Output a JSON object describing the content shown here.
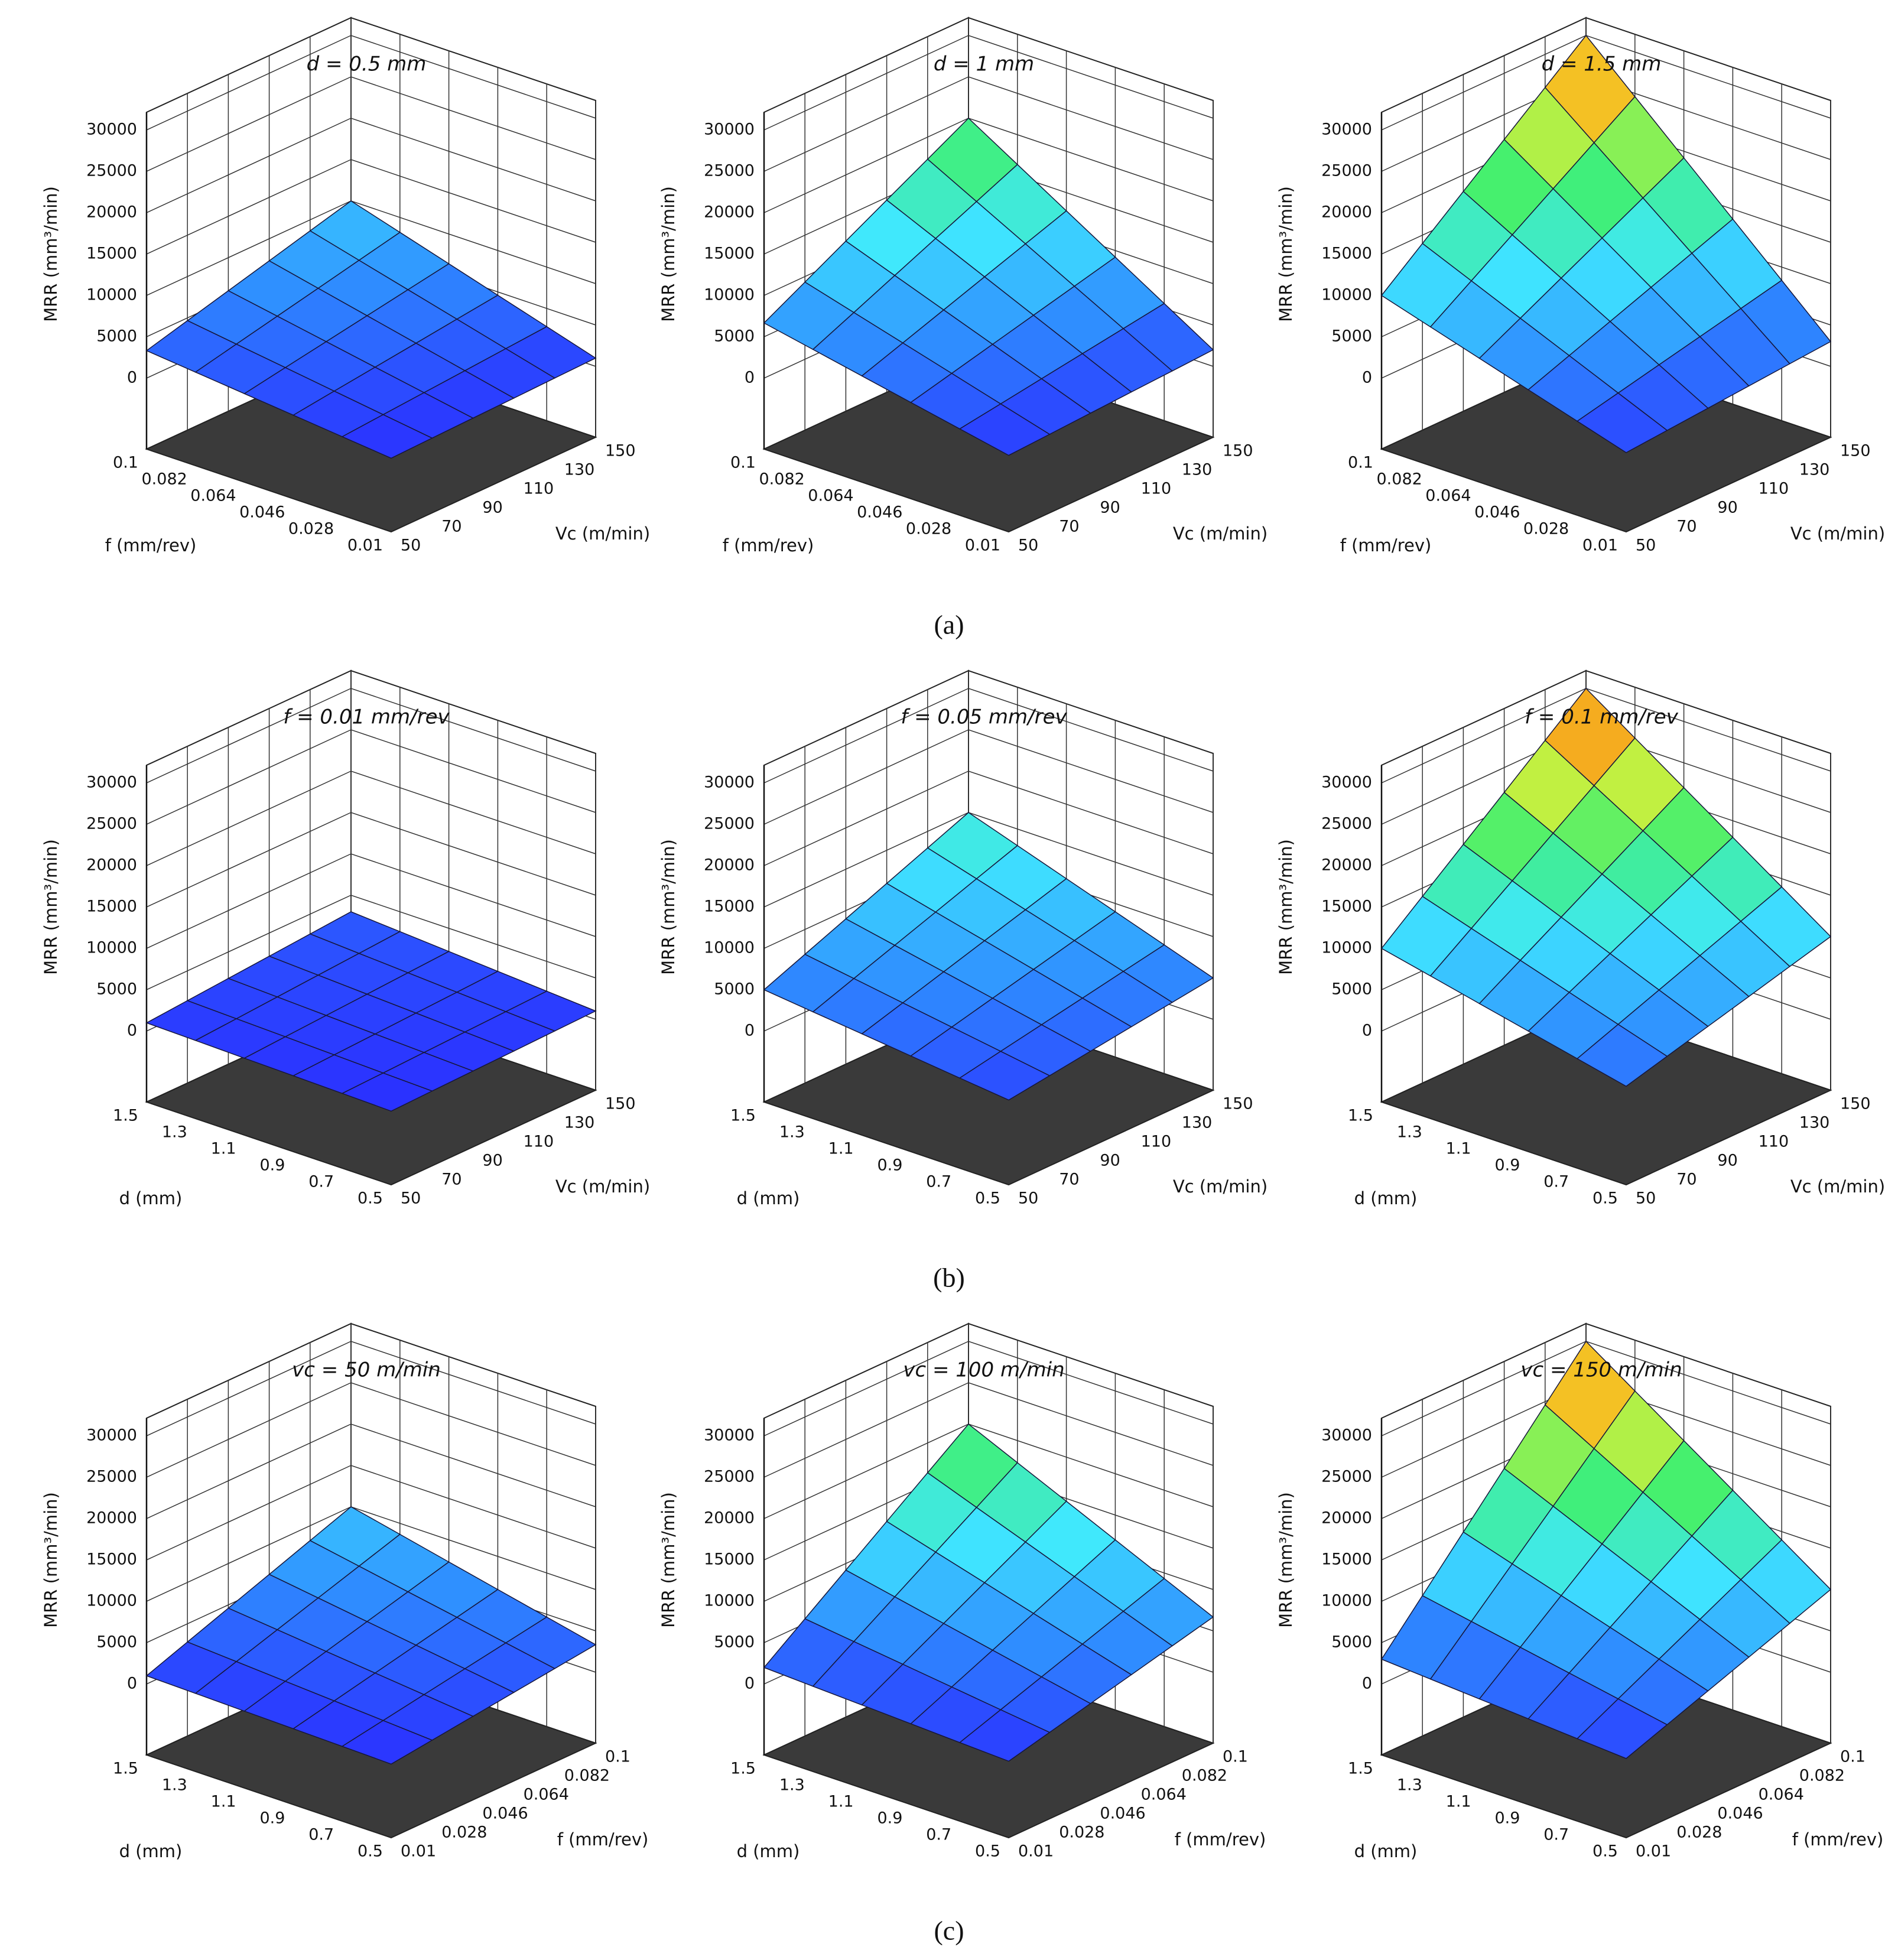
{
  "chart_data": [
    {
      "type": "surface",
      "title": "d = 0.5 mm",
      "xlabel": "f (mm/rev)",
      "ylabel": "Vc (m/min)",
      "zlabel": "MRR (mm³/min)",
      "xlim": [
        0.01,
        0.1
      ],
      "xticks": [
        0.01,
        0.028,
        0.046,
        0.064,
        0.082,
        0.1
      ],
      "ylim": [
        50,
        150
      ],
      "yticks": [
        50,
        70,
        90,
        110,
        130,
        150
      ],
      "zlim": [
        0,
        30000
      ],
      "zticks": [
        0,
        5000,
        10000,
        15000,
        20000,
        25000,
        30000
      ],
      "grid": true,
      "colorscale": [
        "#2a2aff",
        "#2f8fff",
        "#40e8ff",
        "#40f070",
        "#f0f030",
        "#ff3000"
      ],
      "z": [
        [
          330,
          470,
          600,
          730,
          870,
          1000
        ],
        [
          930,
          1310,
          1680,
          2050,
          2430,
          2800
        ],
        [
          1530,
          2150,
          2760,
          3370,
          3990,
          4600
        ],
        [
          2130,
          2990,
          3840,
          4690,
          5550,
          6400
        ],
        [
          2730,
          3830,
          4920,
          6010,
          7110,
          8200
        ],
        [
          3330,
          4670,
          6000,
          7330,
          8670,
          10000
        ]
      ]
    },
    {
      "type": "surface",
      "title": "d = 1 mm",
      "xlabel": "f (mm/rev)",
      "ylabel": "Vc (m/min)",
      "zlabel": "MRR (mm³/min)",
      "xlim": [
        0.01,
        0.1
      ],
      "xticks": [
        0.01,
        0.028,
        0.046,
        0.064,
        0.082,
        0.1
      ],
      "ylim": [
        50,
        150
      ],
      "yticks": [
        50,
        70,
        90,
        110,
        130,
        150
      ],
      "zlim": [
        0,
        30000
      ],
      "zticks": [
        0,
        5000,
        10000,
        15000,
        20000,
        25000,
        30000
      ],
      "grid": true,
      "colorscale": [
        "#2a2aff",
        "#2f8fff",
        "#40e8ff",
        "#40f070",
        "#f0f030",
        "#ff3000"
      ],
      "z": [
        [
          670,
          930,
          1200,
          1470,
          1730,
          2000
        ],
        [
          1870,
          2610,
          3360,
          4110,
          4850,
          5600
        ],
        [
          3070,
          4290,
          5520,
          6750,
          7970,
          9200
        ],
        [
          4270,
          5970,
          7680,
          9390,
          11090,
          12800
        ],
        [
          5470,
          7650,
          9840,
          12030,
          14210,
          16400
        ],
        [
          6670,
          9330,
          12000,
          14670,
          17330,
          20000
        ]
      ]
    },
    {
      "type": "surface",
      "title": "d = 1.5 mm",
      "xlabel": "f (mm/rev)",
      "ylabel": "Vc (m/min)",
      "zlabel": "MRR (mm³/min)",
      "xlim": [
        0.01,
        0.1
      ],
      "xticks": [
        0.01,
        0.028,
        0.046,
        0.064,
        0.082,
        0.1
      ],
      "ylim": [
        50,
        150
      ],
      "yticks": [
        50,
        70,
        90,
        110,
        130,
        150
      ],
      "zlim": [
        0,
        30000
      ],
      "zticks": [
        0,
        5000,
        10000,
        15000,
        20000,
        25000,
        30000
      ],
      "grid": true,
      "colorscale": [
        "#2a2aff",
        "#2f8fff",
        "#40e8ff",
        "#40f070",
        "#f0f030",
        "#ff3000"
      ],
      "z": [
        [
          1000,
          1400,
          1800,
          2200,
          2600,
          3000
        ],
        [
          2800,
          3920,
          5040,
          6160,
          7280,
          8400
        ],
        [
          4600,
          6440,
          8280,
          10120,
          11960,
          13800
        ],
        [
          6400,
          8960,
          11520,
          14080,
          16640,
          19200
        ],
        [
          8200,
          11480,
          14760,
          18040,
          21320,
          24600
        ],
        [
          10000,
          14000,
          18000,
          22000,
          26000,
          30000
        ]
      ]
    },
    {
      "type": "surface",
      "title": "f = 0.01 mm/rev",
      "xlabel": "d (mm)",
      "ylabel": "Vc (m/min)",
      "zlabel": "MRR (mm³/min)",
      "xlim": [
        0.5,
        1.5
      ],
      "xticks": [
        0.5,
        0.7,
        0.9,
        1.1,
        1.3,
        1.5
      ],
      "ylim": [
        50,
        150
      ],
      "yticks": [
        50,
        70,
        90,
        110,
        130,
        150
      ],
      "zlim": [
        0,
        30000
      ],
      "zticks": [
        0,
        5000,
        10000,
        15000,
        20000,
        25000,
        30000
      ],
      "grid": true,
      "colorscale": [
        "#2a2aff",
        "#2f8fff",
        "#40e8ff",
        "#40f070",
        "#f0f030",
        "#ff3000"
      ],
      "z": [
        [
          330,
          470,
          600,
          730,
          870,
          1000
        ],
        [
          470,
          650,
          840,
          1030,
          1210,
          1400
        ],
        [
          600,
          840,
          1080,
          1320,
          1560,
          1800
        ],
        [
          730,
          1030,
          1320,
          1610,
          1910,
          2200
        ],
        [
          870,
          1210,
          1560,
          1910,
          2250,
          2600
        ],
        [
          1000,
          1400,
          1800,
          2200,
          2600,
          3000
        ]
      ]
    },
    {
      "type": "surface",
      "title": "f = 0.05 mm/rev",
      "xlabel": "d (mm)",
      "ylabel": "Vc (m/min)",
      "zlabel": "MRR (mm³/min)",
      "xlim": [
        0.5,
        1.5
      ],
      "xticks": [
        0.5,
        0.7,
        0.9,
        1.1,
        1.3,
        1.5
      ],
      "ylim": [
        50,
        150
      ],
      "yticks": [
        50,
        70,
        90,
        110,
        130,
        150
      ],
      "zlim": [
        0,
        30000
      ],
      "zticks": [
        0,
        5000,
        10000,
        15000,
        20000,
        25000,
        30000
      ],
      "grid": true,
      "colorscale": [
        "#2a2aff",
        "#2f8fff",
        "#40e8ff",
        "#40f070",
        "#f0f030",
        "#ff3000"
      ],
      "z": [
        [
          1670,
          2330,
          3000,
          3670,
          4330,
          5000
        ],
        [
          2330,
          3270,
          4200,
          5130,
          6070,
          7000
        ],
        [
          3000,
          4200,
          5400,
          6600,
          7800,
          9000
        ],
        [
          3670,
          5130,
          6600,
          8070,
          9530,
          11000
        ],
        [
          4330,
          6070,
          7800,
          9530,
          11270,
          13000
        ],
        [
          5000,
          7000,
          9000,
          11000,
          13000,
          15000
        ]
      ]
    },
    {
      "type": "surface",
      "title": "f = 0.1 mm/rev",
      "xlabel": "d (mm)",
      "ylabel": "Vc (m/min)",
      "zlabel": "MRR (mm³/min)",
      "xlim": [
        0.5,
        1.5
      ],
      "xticks": [
        0.5,
        0.7,
        0.9,
        1.1,
        1.3,
        1.5
      ],
      "ylim": [
        50,
        150
      ],
      "yticks": [
        50,
        70,
        90,
        110,
        130,
        150
      ],
      "zlim": [
        0,
        30000
      ],
      "zticks": [
        0,
        5000,
        10000,
        15000,
        20000,
        25000,
        30000
      ],
      "grid": true,
      "colorscale": [
        "#2a2aff",
        "#2f8fff",
        "#40e8ff",
        "#40f070",
        "#f0f030",
        "#ff3000"
      ],
      "z": [
        [
          3330,
          4670,
          6000,
          7330,
          8670,
          10000
        ],
        [
          4670,
          6530,
          8400,
          10270,
          12130,
          14000
        ],
        [
          6000,
          8400,
          10800,
          13200,
          15600,
          18000
        ],
        [
          7330,
          10270,
          13200,
          16130,
          19070,
          22000
        ],
        [
          8670,
          12130,
          15600,
          19070,
          22530,
          26000
        ],
        [
          10000,
          14000,
          18000,
          22000,
          26000,
          30000
        ]
      ]
    },
    {
      "type": "surface",
      "title": "vc = 50 m/min",
      "xlabel": "d (mm)",
      "ylabel": "f (mm/rev)",
      "zlabel": "MRR (mm³/min)",
      "xlim": [
        0.5,
        1.5
      ],
      "xticks": [
        0.5,
        0.7,
        0.9,
        1.1,
        1.3,
        1.5
      ],
      "ylim": [
        0.01,
        0.1
      ],
      "yticks": [
        0.01,
        0.028,
        0.046,
        0.064,
        0.082,
        0.1
      ],
      "zlim": [
        0,
        30000
      ],
      "zticks": [
        0,
        5000,
        10000,
        15000,
        20000,
        25000,
        30000
      ],
      "grid": true,
      "colorscale": [
        "#2a2aff",
        "#2f8fff",
        "#40e8ff",
        "#40f070",
        "#f0f030",
        "#ff3000"
      ],
      "z": [
        [
          330,
          930,
          1530,
          2130,
          2730,
          3330
        ],
        [
          470,
          1310,
          2150,
          2990,
          3830,
          4670
        ],
        [
          600,
          1680,
          2760,
          3840,
          4920,
          6000
        ],
        [
          730,
          2050,
          3370,
          4690,
          6010,
          7330
        ],
        [
          870,
          2430,
          3990,
          5550,
          7110,
          8670
        ],
        [
          1000,
          2800,
          4600,
          6400,
          8200,
          10000
        ]
      ]
    },
    {
      "type": "surface",
      "title": "vc = 100 m/min",
      "xlabel": "d (mm)",
      "ylabel": "f (mm/rev)",
      "zlabel": "MRR (mm³/min)",
      "xlim": [
        0.5,
        1.5
      ],
      "xticks": [
        0.5,
        0.7,
        0.9,
        1.1,
        1.3,
        1.5
      ],
      "ylim": [
        0.01,
        0.1
      ],
      "yticks": [
        0.01,
        0.028,
        0.046,
        0.064,
        0.082,
        0.1
      ],
      "zlim": [
        0,
        30000
      ],
      "zticks": [
        0,
        5000,
        10000,
        15000,
        20000,
        25000,
        30000
      ],
      "grid": true,
      "colorscale": [
        "#2a2aff",
        "#2f8fff",
        "#40e8ff",
        "#40f070",
        "#f0f030",
        "#ff3000"
      ],
      "z": [
        [
          670,
          1870,
          3070,
          4270,
          5470,
          6670
        ],
        [
          930,
          2610,
          4290,
          5970,
          7650,
          9330
        ],
        [
          1200,
          3360,
          5520,
          7680,
          9840,
          12000
        ],
        [
          1470,
          4110,
          6750,
          9390,
          12030,
          14670
        ],
        [
          1730,
          4850,
          7970,
          11090,
          14210,
          17330
        ],
        [
          2000,
          5600,
          9200,
          12800,
          16400,
          20000
        ]
      ]
    },
    {
      "type": "surface",
      "title": "vc = 150 m/min",
      "xlabel": "d (mm)",
      "ylabel": "f (mm/rev)",
      "zlabel": "MRR (mm³/min)",
      "xlim": [
        0.5,
        1.5
      ],
      "xticks": [
        0.5,
        0.7,
        0.9,
        1.1,
        1.3,
        1.5
      ],
      "ylim": [
        0.01,
        0.1
      ],
      "yticks": [
        0.01,
        0.028,
        0.046,
        0.064,
        0.082,
        0.1
      ],
      "zlim": [
        0,
        30000
      ],
      "zticks": [
        0,
        5000,
        10000,
        15000,
        20000,
        25000,
        30000
      ],
      "grid": true,
      "colorscale": [
        "#2a2aff",
        "#2f8fff",
        "#40e8ff",
        "#40f070",
        "#f0f030",
        "#ff3000"
      ],
      "z": [
        [
          1000,
          2800,
          4600,
          6400,
          8200,
          10000
        ],
        [
          1400,
          3920,
          6440,
          8960,
          11480,
          14000
        ],
        [
          1800,
          5040,
          8280,
          11520,
          14760,
          18000
        ],
        [
          2200,
          6160,
          10120,
          14080,
          18040,
          22000
        ],
        [
          2600,
          7280,
          11960,
          16640,
          21320,
          26000
        ],
        [
          3000,
          8400,
          13800,
          19200,
          24600,
          30000
        ]
      ]
    }
  ],
  "captions": [
    "(a)",
    "(b)",
    "(c)"
  ]
}
